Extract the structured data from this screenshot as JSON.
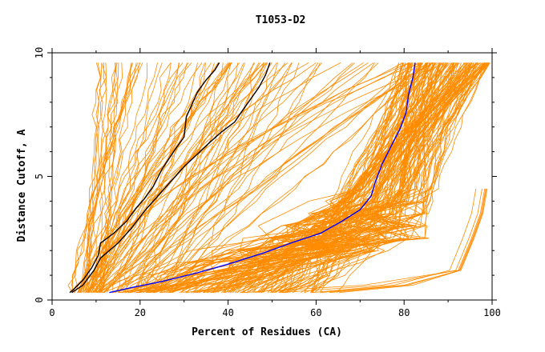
{
  "chart_data": {
    "type": "line",
    "title": "T1053-D2",
    "xlabel": "Percent of Residues (CA)",
    "ylabel": "Distance Cutoff, A",
    "xlim": [
      0,
      100
    ],
    "ylim": [
      0,
      10
    ],
    "x_ticks": [
      "0",
      "20",
      "40",
      "60",
      "80",
      "100"
    ],
    "y_ticks": [
      "0",
      "5",
      "10"
    ],
    "bundle_color": "#ff8c00",
    "series": [
      {
        "color": "#000000",
        "points": [
          [
            4,
            0.3
          ],
          [
            5,
            0.45
          ],
          [
            7,
            0.8
          ],
          [
            9,
            1.3
          ],
          [
            10.5,
            1.8
          ],
          [
            11,
            2.3
          ],
          [
            14,
            2.7
          ],
          [
            17,
            3.2
          ],
          [
            19,
            3.7
          ],
          [
            21,
            4.1
          ],
          [
            23,
            4.6
          ],
          [
            25,
            5.3
          ],
          [
            28,
            6.1
          ],
          [
            30,
            6.6
          ],
          [
            30.5,
            7.4
          ],
          [
            32,
            8.0
          ],
          [
            33,
            8.4
          ],
          [
            35,
            8.9
          ],
          [
            37,
            9.3
          ],
          [
            38,
            9.6
          ]
        ]
      },
      {
        "color": "#000000",
        "points": [
          [
            4.5,
            0.3
          ],
          [
            7,
            0.6
          ],
          [
            9.5,
            1.2
          ],
          [
            11,
            1.7
          ],
          [
            13,
            2.0
          ],
          [
            15,
            2.3
          ],
          [
            18,
            2.9
          ],
          [
            21,
            3.6
          ],
          [
            24,
            4.2
          ],
          [
            27,
            4.8
          ],
          [
            30,
            5.4
          ],
          [
            33,
            5.9
          ],
          [
            36,
            6.4
          ],
          [
            38.5,
            6.8
          ],
          [
            41.5,
            7.2
          ],
          [
            43,
            7.6
          ],
          [
            45,
            8.1
          ],
          [
            47,
            8.6
          ],
          [
            48.5,
            9.1
          ],
          [
            49.5,
            9.6
          ]
        ]
      },
      {
        "color": "#0000ff",
        "points": [
          [
            13,
            0.3
          ],
          [
            18,
            0.5
          ],
          [
            25,
            0.75
          ],
          [
            33,
            1.1
          ],
          [
            40,
            1.45
          ],
          [
            48,
            1.9
          ],
          [
            55,
            2.35
          ],
          [
            61,
            2.7
          ],
          [
            66,
            3.2
          ],
          [
            70,
            3.65
          ],
          [
            72.5,
            4.2
          ],
          [
            73.5,
            4.8
          ],
          [
            75,
            5.5
          ],
          [
            77,
            6.2
          ],
          [
            79,
            6.9
          ],
          [
            80.5,
            7.6
          ],
          [
            81,
            8.3
          ],
          [
            82,
            9.0
          ],
          [
            82.5,
            9.6
          ]
        ]
      }
    ]
  }
}
